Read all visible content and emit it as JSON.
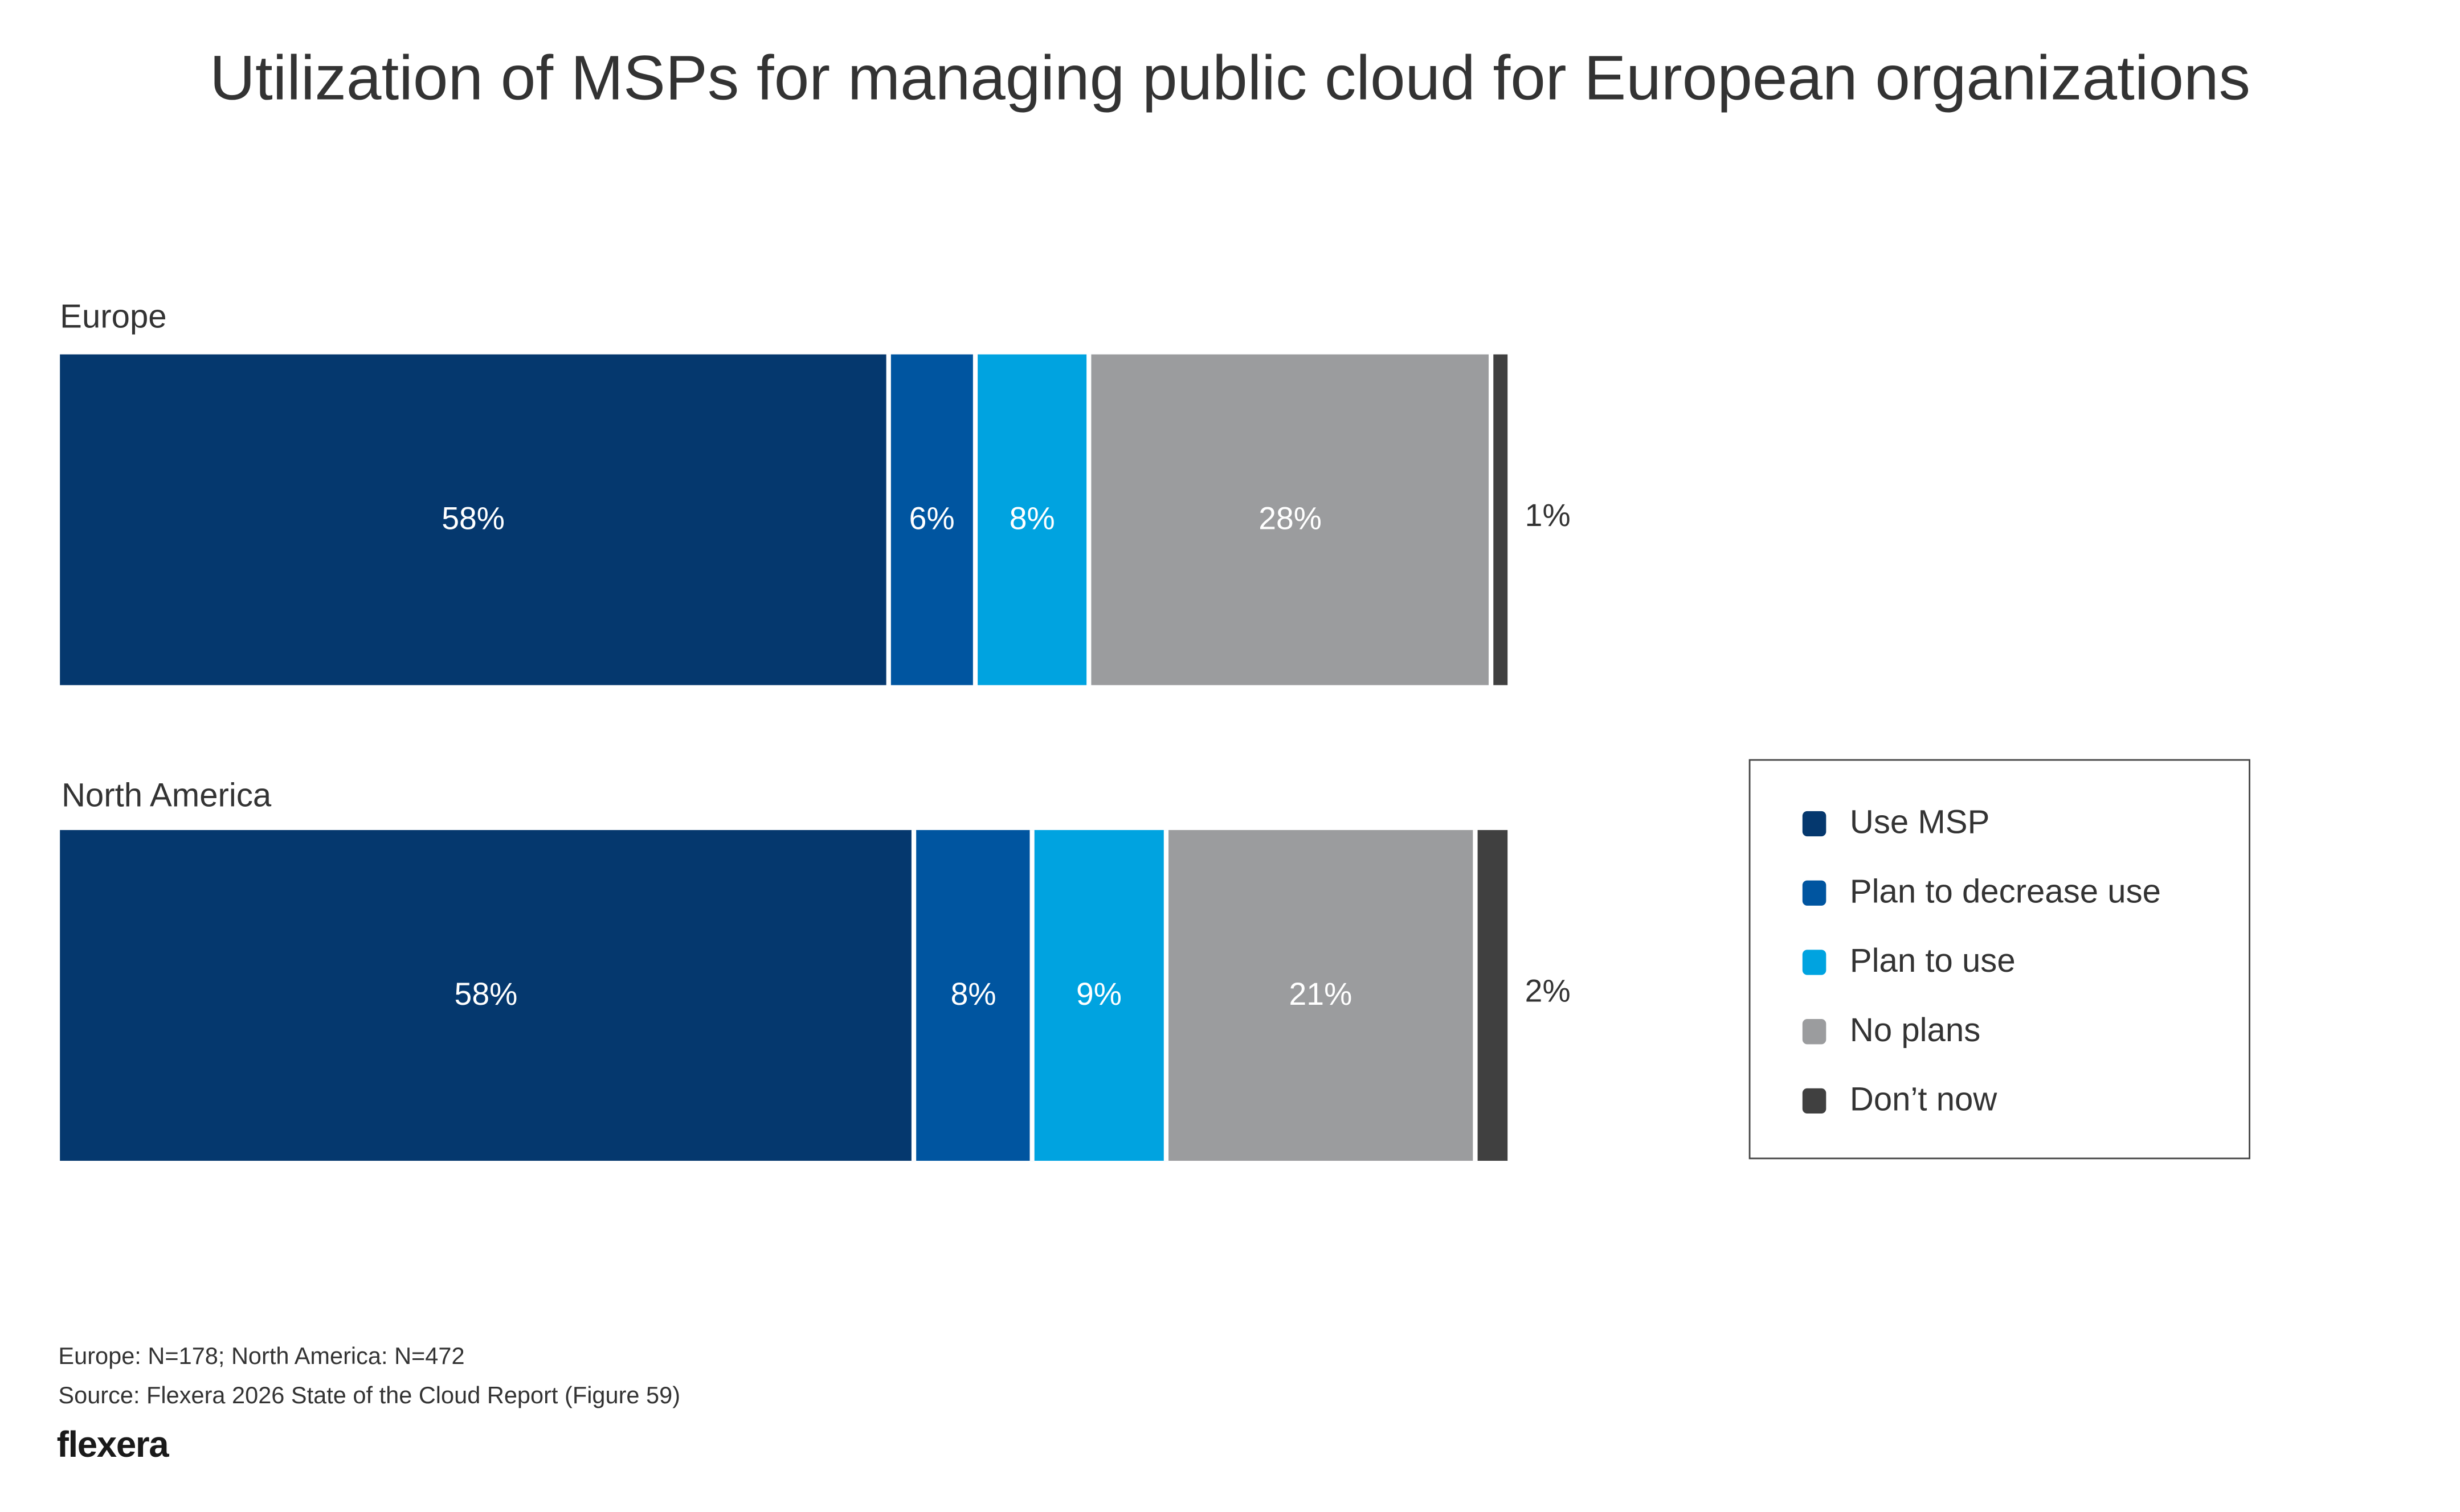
{
  "chart_data": {
    "type": "bar",
    "orientation": "horizontal-stacked",
    "title": "Utilization of MSPs for managing public cloud for European organizations",
    "categories": [
      "Europe",
      "North America"
    ],
    "series": [
      {
        "name": "Use MSP",
        "color": "#05386E",
        "values": [
          58,
          58
        ]
      },
      {
        "name": "Plan to decrease use",
        "color": "#0055A0",
        "values": [
          6,
          8
        ]
      },
      {
        "name": "Plan to use",
        "color": "#00A3E0",
        "values": [
          8,
          9
        ]
      },
      {
        "name": "No plans",
        "color": "#9B9C9E",
        "values": [
          28,
          21
        ]
      },
      {
        "name": "Don’t now",
        "color": "#404040",
        "values": [
          1,
          2
        ]
      }
    ],
    "value_suffix": "%",
    "legend_position": "right",
    "grid": false,
    "xlim": [
      0,
      101
    ]
  },
  "footnotes": {
    "sample": "Europe: N=178; North America: N=472",
    "source": "Source: Flexera 2026 State of the Cloud Report (Figure 59)"
  },
  "logo": {
    "text": "flexera"
  }
}
